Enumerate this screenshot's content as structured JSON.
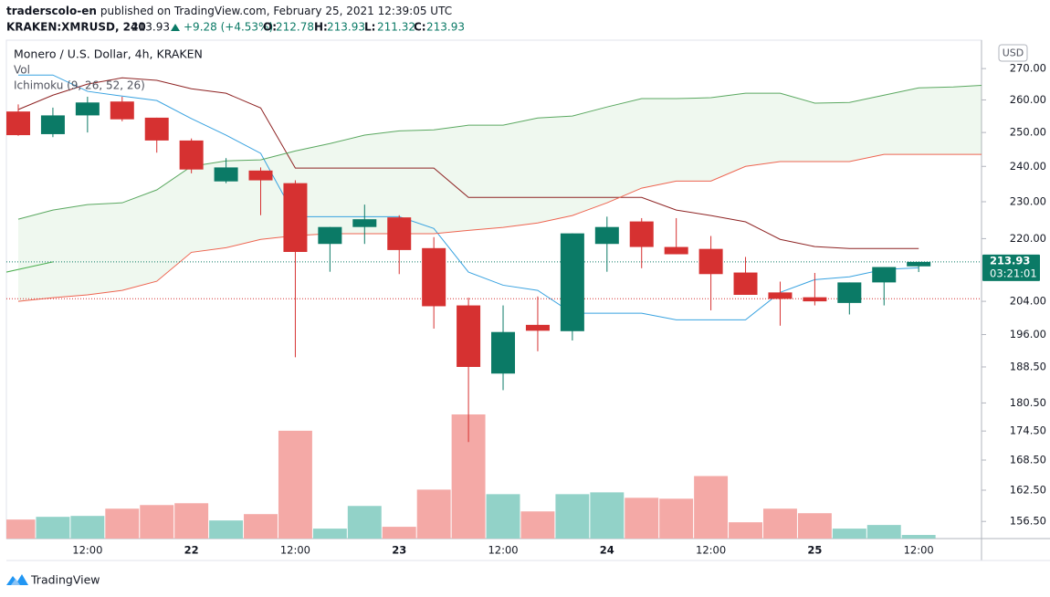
{
  "header": {
    "author": "traderscolo-en",
    "published": "published on TradingView.com, February 25, 2021 12:39:05 UTC",
    "symbol": "KRAKEN:XMRUSD, 240",
    "last": 213.93,
    "change": "+9.28 (+4.53%)",
    "ohlc": [
      {
        "label": "O:",
        "value": 212.78
      },
      {
        "label": "H:",
        "value": 213.93
      },
      {
        "label": "L:",
        "value": 211.32
      },
      {
        "label": "C:",
        "value": 213.93
      }
    ]
  },
  "chart_data": {
    "type": "candlestick",
    "title": "Monero / U.S. Dollar, 4h, KRAKEN",
    "indicators": [
      "Vol",
      "Ichimoku (9, 26, 52, 26)"
    ],
    "currency": "USD",
    "log": true,
    "ylim": [
      153.3,
      279.4
    ],
    "yticks": [
      {
        "value": 270,
        "label": "270.00"
      },
      {
        "value": 260,
        "label": "260.00"
      },
      {
        "value": 250,
        "label": "250.00"
      },
      {
        "value": 240,
        "label": "240.00"
      },
      {
        "value": 230,
        "label": "230.00"
      },
      {
        "value": 220,
        "label": "220.00"
      },
      {
        "value": 204,
        "label": "204.00"
      },
      {
        "value": 196,
        "label": "196.00"
      },
      {
        "value": 188.5,
        "label": "188.50"
      },
      {
        "value": 180.5,
        "label": "180.50"
      },
      {
        "value": 174.5,
        "label": "174.50"
      },
      {
        "value": 168.5,
        "label": "168.50"
      },
      {
        "value": 162.5,
        "label": "162.50"
      },
      {
        "value": 156.5,
        "label": "156.50"
      }
    ],
    "categories": [
      null,
      null,
      "12:00",
      null,
      null,
      "22",
      null,
      null,
      "12:00",
      null,
      null,
      "23",
      null,
      null,
      "12:00",
      null,
      null,
      "24",
      null,
      null,
      "12:00",
      null,
      null,
      "25",
      null,
      null,
      "12:00"
    ],
    "open": [
      256.4,
      249.5,
      255.2,
      259.5,
      254.5,
      247.6,
      235.7,
      238.8,
      235.2,
      218.6,
      223.1,
      225.7,
      217.5,
      203.0,
      187.0,
      198.3,
      196.8,
      218.6,
      224.6,
      217.8,
      217.3,
      211.2,
      206.2,
      205.0,
      203.6,
      208.7,
      212.78
    ],
    "high": [
      258.6,
      257.6,
      261.0,
      261.0,
      254.5,
      248.2,
      242.4,
      239.7,
      236.0,
      223.1,
      229.2,
      226.3,
      220.4,
      204.9,
      203.0,
      205.2,
      221.4,
      225.9,
      225.5,
      225.5,
      220.7,
      215.2,
      208.9,
      211.1,
      208.7,
      212.6,
      213.93
    ],
    "low": [
      249.0,
      248.6,
      250.0,
      253.4,
      244.0,
      238.0,
      235.2,
      226.3,
      190.7,
      211.4,
      218.6,
      210.8,
      197.4,
      172.2,
      183.3,
      192.1,
      194.6,
      211.4,
      212.3,
      215.9,
      201.8,
      205.6,
      198.1,
      203.0,
      200.8,
      203.0,
      211.32
    ],
    "close": [
      249.2,
      255.2,
      259.2,
      254.0,
      247.6,
      239.1,
      239.7,
      236.0,
      216.5,
      223.1,
      225.2,
      217.0,
      202.8,
      188.5,
      196.6,
      196.9,
      221.4,
      223.1,
      217.8,
      215.9,
      210.8,
      205.6,
      204.6,
      204.0,
      208.7,
      212.6,
      213.93
    ],
    "up_color": "#0b7a66",
    "down_color": "#d63131",
    "volume": {
      "ylim": [
        0,
        550
      ],
      "values": [
        21,
        24,
        25,
        33,
        37,
        39,
        20,
        27,
        119,
        11,
        36,
        13,
        54,
        137,
        49,
        30,
        49,
        51,
        45,
        44,
        69,
        18,
        33,
        28,
        11,
        15,
        4
      ],
      "up_color": "#92d2c8",
      "down_color": "#f4a9a6"
    },
    "ichimoku": [
      {
        "color": "#38a2e0",
        "x": [
          0,
          1,
          2,
          3,
          4,
          5,
          6,
          7,
          8,
          9,
          10,
          11,
          12,
          13,
          14,
          15,
          16,
          17,
          18,
          19,
          20,
          21,
          22,
          23,
          24,
          25,
          26
        ],
        "values": [
          267.9,
          267.9,
          262.7,
          261.2,
          259.8,
          254.2,
          249.2,
          243.8,
          225.9,
          225.9,
          225.9,
          225.9,
          222.7,
          211.3,
          208.0,
          206.7,
          201.1,
          201.1,
          201.1,
          199.5,
          199.5,
          199.5,
          206.2,
          209.4,
          210.1,
          212.0,
          212.4
        ]
      },
      {
        "color": "#8e2323",
        "x": [
          0,
          1,
          2,
          3,
          4,
          5,
          6,
          7,
          8,
          9,
          10,
          11,
          12,
          13,
          14,
          15,
          16,
          17,
          18,
          19,
          20,
          21,
          22,
          23,
          24,
          25,
          26
        ],
        "values": [
          257.0,
          261.5,
          265.0,
          267.0,
          266.2,
          263.5,
          262.1,
          257.5,
          239.5,
          239.5,
          239.5,
          239.5,
          239.5,
          231.2,
          231.2,
          231.2,
          231.2,
          231.2,
          231.2,
          227.7,
          226.2,
          224.5,
          219.8,
          217.9,
          217.4,
          217.4,
          217.4
        ]
      },
      {
        "color": "#4caf50",
        "x": [
          -0.35,
          1
        ],
        "values": [
          211.3,
          213.93
        ]
      },
      {
        "color": "#5aa860",
        "x": [
          0,
          1,
          2,
          3,
          4,
          5,
          6,
          7,
          8,
          9,
          10,
          11,
          12,
          13,
          14,
          15,
          16,
          17,
          18,
          19,
          20,
          21,
          22,
          23,
          24,
          25,
          26,
          27,
          28
        ],
        "values": [
          225.2,
          227.7,
          229.2,
          229.7,
          233.3,
          240.0,
          241.6,
          241.9,
          244.5,
          246.7,
          249.2,
          250.5,
          250.8,
          252.2,
          252.2,
          254.4,
          255.0,
          257.8,
          260.4,
          260.4,
          260.7,
          262.1,
          262.1,
          259.0,
          259.2,
          261.5,
          263.8,
          264.1,
          264.7
        ]
      },
      {
        "color": "#ee6450",
        "x": [
          0,
          1,
          2,
          3,
          4,
          5,
          6,
          7,
          8,
          9,
          10,
          11,
          12,
          13,
          14,
          15,
          16,
          17,
          18,
          19,
          20,
          21,
          22,
          23,
          24,
          25,
          26,
          27,
          28
        ],
        "values": [
          204.0,
          204.9,
          205.6,
          206.7,
          209.0,
          216.4,
          217.6,
          219.8,
          220.8,
          221.3,
          221.3,
          221.3,
          221.3,
          222.2,
          223.0,
          224.2,
          226.2,
          229.7,
          233.8,
          235.8,
          235.8,
          240.0,
          241.4,
          241.4,
          241.4,
          243.5,
          243.5,
          243.5,
          243.5
        ]
      }
    ],
    "cloud_color": "rgba(76,175,80,0.09)",
    "last_price": {
      "value": 213.93,
      "countdown": "03:21:01"
    },
    "prev_close": 204.65
  },
  "footer": {
    "brand": "TradingView"
  }
}
